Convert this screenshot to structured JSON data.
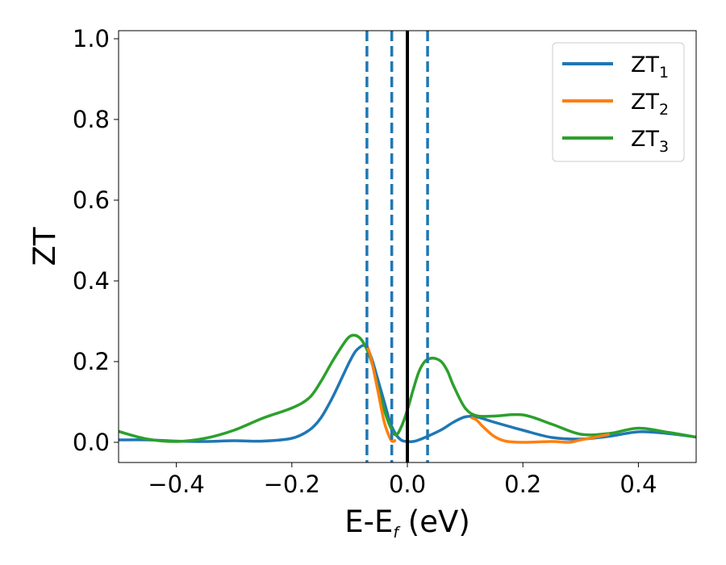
{
  "chart_data": {
    "type": "line",
    "title": "",
    "xlabel": "E-E",
    "xlabel_sub": "f",
    "xlabel_unit": " (eV)",
    "ylabel": "ZT",
    "xlim": [
      -0.5,
      0.5
    ],
    "ylim": [
      -0.05,
      1.02
    ],
    "xticks": [
      -0.4,
      -0.2,
      0.0,
      0.2,
      0.4
    ],
    "xtick_labels": [
      "−0.4",
      "−0.2",
      "0.0",
      "0.2",
      "0.4"
    ],
    "yticks": [
      0.0,
      0.2,
      0.4,
      0.6,
      0.8,
      1.0
    ],
    "ytick_labels": [
      "0.0",
      "0.2",
      "0.4",
      "0.6",
      "0.8",
      "1.0"
    ],
    "grid": false,
    "legend_position": "top-right",
    "vlines": [
      {
        "x": 0.0,
        "style": "solid",
        "color": "#000000"
      },
      {
        "x": -0.07,
        "style": "dashed",
        "color": "#1f77b4"
      },
      {
        "x": -0.027,
        "style": "dashed",
        "color": "#1f77b4"
      },
      {
        "x": 0.035,
        "style": "dashed",
        "color": "#1f77b4"
      }
    ],
    "series": [
      {
        "name": "ZT",
        "name_sub": "1",
        "color": "#1f77b4",
        "x": [
          -0.5,
          -0.45,
          -0.4,
          -0.35,
          -0.3,
          -0.25,
          -0.2,
          -0.17,
          -0.15,
          -0.13,
          -0.11,
          -0.1,
          -0.09,
          -0.08,
          -0.075,
          -0.07,
          -0.065,
          -0.06,
          -0.05,
          -0.04,
          -0.03,
          -0.02,
          -0.01,
          0.0,
          0.01,
          0.02,
          0.04,
          0.06,
          0.08,
          0.1,
          0.12,
          0.15,
          0.2,
          0.25,
          0.3,
          0.35,
          0.4,
          0.45,
          0.5
        ],
        "y": [
          0.006,
          0.006,
          0.003,
          0.002,
          0.004,
          0.003,
          0.01,
          0.03,
          0.06,
          0.11,
          0.17,
          0.2,
          0.225,
          0.238,
          0.24,
          0.235,
          0.22,
          0.2,
          0.15,
          0.1,
          0.05,
          0.02,
          0.005,
          0.002,
          0.002,
          0.006,
          0.018,
          0.032,
          0.05,
          0.063,
          0.063,
          0.05,
          0.03,
          0.012,
          0.008,
          0.015,
          0.026,
          0.022,
          0.013
        ]
      },
      {
        "name": "ZT",
        "name_sub": "2",
        "color": "#ff7f0e",
        "x": [
          -0.07,
          -0.065,
          -0.06,
          -0.05,
          -0.04,
          -0.03,
          -0.025,
          -0.02
        ],
        "y": [
          0.24,
          0.22,
          0.19,
          0.12,
          0.05,
          0.01,
          0.002,
          0.006
        ],
        "x2": [
          0.11,
          0.12,
          0.13,
          0.15,
          0.17,
          0.2,
          0.25,
          0.28,
          0.3,
          0.33,
          0.35
        ],
        "y2": [
          0.062,
          0.055,
          0.04,
          0.015,
          0.003,
          0.0,
          0.002,
          0.0,
          0.006,
          0.014,
          0.02
        ]
      },
      {
        "name": "ZT",
        "name_sub": "3",
        "color": "#2ca02c",
        "x": [
          -0.5,
          -0.45,
          -0.4,
          -0.35,
          -0.3,
          -0.25,
          -0.2,
          -0.17,
          -0.15,
          -0.13,
          -0.11,
          -0.1,
          -0.09,
          -0.08,
          -0.07,
          -0.06,
          -0.05,
          -0.04,
          -0.03,
          -0.02,
          -0.01,
          0.0,
          0.01,
          0.02,
          0.03,
          0.04,
          0.05,
          0.06,
          0.07,
          0.08,
          0.1,
          0.12,
          0.15,
          0.2,
          0.25,
          0.3,
          0.35,
          0.4,
          0.45,
          0.5
        ],
        "y": [
          0.027,
          0.008,
          0.002,
          0.01,
          0.03,
          0.06,
          0.085,
          0.11,
          0.15,
          0.2,
          0.245,
          0.262,
          0.265,
          0.255,
          0.23,
          0.19,
          0.13,
          0.08,
          0.04,
          0.018,
          0.04,
          0.08,
          0.13,
          0.175,
          0.2,
          0.208,
          0.207,
          0.198,
          0.175,
          0.14,
          0.085,
          0.066,
          0.065,
          0.068,
          0.045,
          0.02,
          0.022,
          0.035,
          0.025,
          0.013
        ]
      }
    ]
  }
}
